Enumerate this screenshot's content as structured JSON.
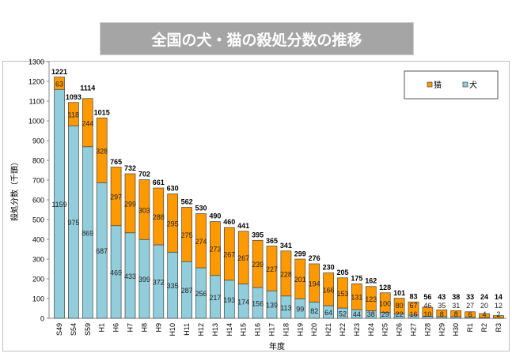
{
  "title": "全国の犬・猫の殺処分数の推移",
  "colors": {
    "cat": "#ff9900",
    "dog": "#92cddc",
    "title_bg": "#a5a5a5"
  },
  "chart_data": {
    "type": "bar",
    "stacked": true,
    "title": "全国の犬・猫の殺処分数の推移",
    "xlabel": "年度",
    "ylabel": "殺処分数（千頭）",
    "ylim": [
      0,
      1300
    ],
    "yticks": [
      0,
      100,
      200,
      300,
      400,
      500,
      600,
      700,
      800,
      900,
      1000,
      1100,
      1200,
      1300
    ],
    "grid": false,
    "legend_position": "top-right",
    "categories": [
      "S49",
      "S54",
      "S59",
      "H1",
      "H6",
      "H7",
      "H8",
      "H9",
      "H10",
      "H11",
      "H12",
      "H13",
      "H14",
      "H15",
      "H16",
      "H17",
      "H18",
      "H19",
      "H20",
      "H21",
      "H22",
      "H23",
      "H24",
      "H25",
      "H26",
      "H27",
      "H28",
      "H29",
      "H30",
      "R1",
      "R2",
      "R3"
    ],
    "series": [
      {
        "name": "犬",
        "color": "#92cddc",
        "values": [
          1159,
          975,
          869,
          687,
          469,
          433,
          399,
          372,
          335,
          287,
          256,
          217,
          193,
          174,
          156,
          139,
          113,
          99,
          82,
          64,
          52,
          44,
          38,
          29,
          22,
          16,
          10,
          8,
          8,
          6,
          4,
          2
        ]
      },
      {
        "name": "猫",
        "color": "#ff9900",
        "values": [
          63,
          118,
          244,
          328,
          297,
          299,
          303,
          288,
          295,
          275,
          274,
          273,
          267,
          267,
          239,
          227,
          228,
          201,
          194,
          166,
          153,
          131,
          123,
          100,
          80,
          67,
          46,
          35,
          31,
          27,
          20,
          12
        ]
      }
    ],
    "totals": [
      1221,
      1093,
      1114,
      1015,
      765,
      732,
      702,
      661,
      630,
      562,
      530,
      490,
      460,
      441,
      395,
      365,
      341,
      299,
      276,
      230,
      205,
      175,
      162,
      128,
      101,
      83,
      56,
      43,
      38,
      33,
      24,
      14
    ],
    "legend": [
      "猫",
      "犬"
    ]
  }
}
